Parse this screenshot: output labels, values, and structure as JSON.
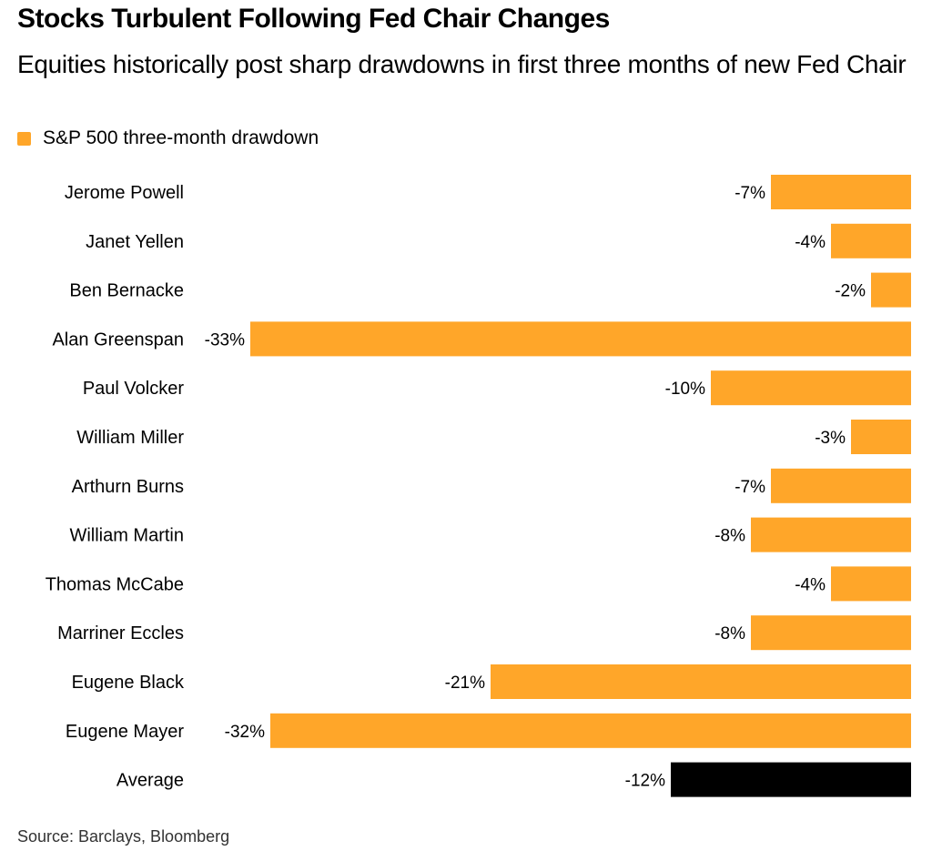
{
  "title": "Stocks Turbulent Following Fed Chair Changes",
  "subtitle": "Equities historically post sharp drawdowns in first three months of new Fed Chair",
  "legend": {
    "label": "S&P 500 three-month drawdown",
    "color": "#ffa629"
  },
  "source": "Source: Barclays, Bloomberg",
  "chart_data": {
    "type": "bar",
    "orientation": "horizontal",
    "categories": [
      "Jerome Powell",
      "Janet Yellen",
      "Ben Bernacke",
      "Alan Greenspan",
      "Paul Volcker",
      "William Miller",
      "Arthurn Burns",
      "William Martin",
      "Thomas McCabe",
      "Marriner Eccles",
      "Eugene Black",
      "Eugene Mayer",
      "Average"
    ],
    "values": [
      -7,
      -4,
      -2,
      -33,
      -10,
      -3,
      -7,
      -8,
      -4,
      -8,
      -21,
      -32,
      -12
    ],
    "labels": [
      "-7%",
      "-4%",
      "-2%",
      "-33%",
      "-10%",
      "-3%",
      "-7%",
      "-8%",
      "-4%",
      "-8%",
      "-21%",
      "-32%",
      "-12%"
    ],
    "series": [
      {
        "name": "S&P 500 three-month drawdown",
        "values": [
          -7,
          -4,
          -2,
          -33,
          -10,
          -3,
          -7,
          -8,
          -4,
          -8,
          -21,
          -32,
          -12
        ]
      }
    ],
    "colors": {
      "bar": "#ffa629",
      "average_bar": "#000000"
    },
    "xlim": [
      -33,
      0
    ],
    "grid": false,
    "legend_position": "top-left"
  }
}
